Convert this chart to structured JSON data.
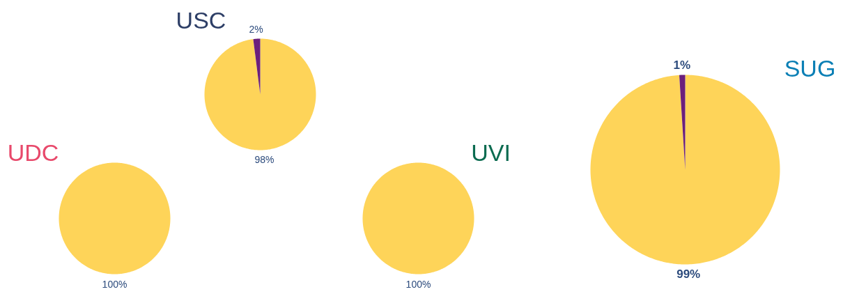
{
  "chart_data": [
    {
      "type": "pie",
      "title": "UDC",
      "categories": [
        null
      ],
      "values": [
        100
      ],
      "colors": [
        "#fed459"
      ],
      "value_labels": [
        "100%"
      ]
    },
    {
      "type": "pie",
      "title": "USC",
      "categories": [
        null,
        null
      ],
      "values": [
        98,
        2
      ],
      "colors": [
        "#fed459",
        "#6b1f7c"
      ],
      "value_labels": [
        "98%",
        "2%"
      ]
    },
    {
      "type": "pie",
      "title": "UVI",
      "categories": [
        null
      ],
      "values": [
        100
      ],
      "colors": [
        "#fed459"
      ],
      "value_labels": [
        "100%"
      ]
    },
    {
      "type": "pie",
      "title": "SUG",
      "categories": [
        null,
        null
      ],
      "values": [
        99,
        1
      ],
      "colors": [
        "#fed459",
        "#6b1f7c"
      ],
      "value_labels": [
        "99%",
        "1%"
      ]
    }
  ]
}
